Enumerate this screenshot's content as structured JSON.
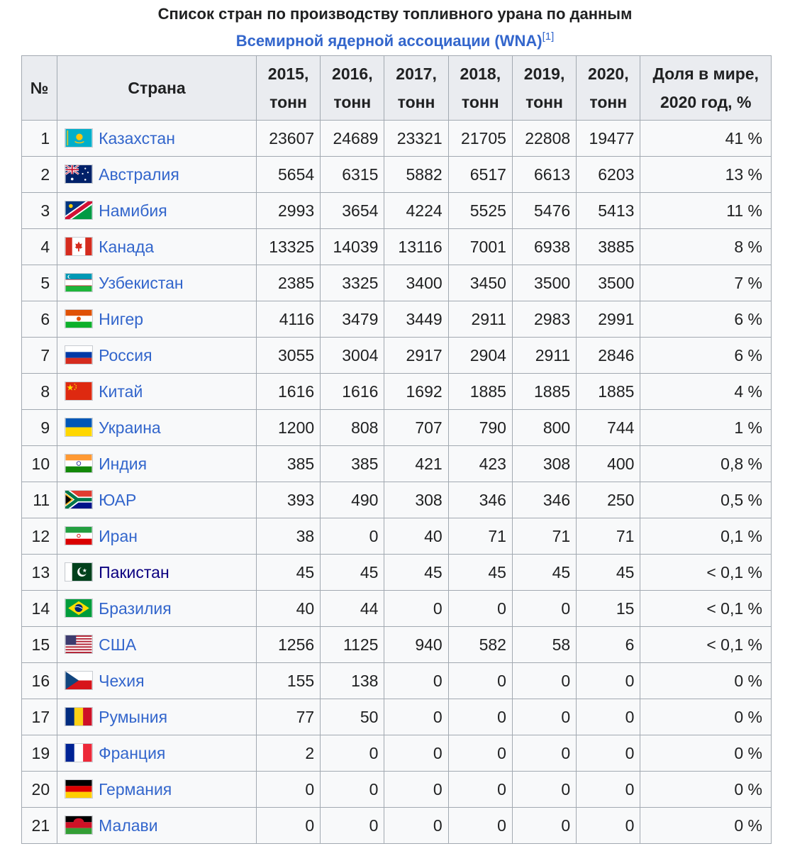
{
  "caption": {
    "line1": "Список стран по производству топливного урана по данным",
    "link_text": "Всемирной ядерной ассоциации (WNA)",
    "ref": "[1]"
  },
  "table": {
    "headers": {
      "num": "№",
      "country": "Страна",
      "years": [
        {
          "year": "2015,",
          "unit": "тонн"
        },
        {
          "year": "2016,",
          "unit": "тонн"
        },
        {
          "year": "2017,",
          "unit": "тонн"
        },
        {
          "year": "2018,",
          "unit": "тонн"
        },
        {
          "year": "2019,",
          "unit": "тонн"
        },
        {
          "year": "2020,",
          "unit": "тонн"
        }
      ],
      "share_line1": "Доля в мире,",
      "share_line2": "2020 год, %"
    },
    "rows": [
      {
        "n": "1",
        "country": "Казахстан",
        "flag": "kazakhstan-flag-icon",
        "values": [
          "23607",
          "24689",
          "23321",
          "21705",
          "22808",
          "19477"
        ],
        "share": "41 %"
      },
      {
        "n": "2",
        "country": "Австралия",
        "flag": "australia-flag-icon",
        "values": [
          "5654",
          "6315",
          "5882",
          "6517",
          "6613",
          "6203"
        ],
        "share": "13 %"
      },
      {
        "n": "3",
        "country": "Намибия",
        "flag": "namibia-flag-icon",
        "values": [
          "2993",
          "3654",
          "4224",
          "5525",
          "5476",
          "5413"
        ],
        "share": "11 %"
      },
      {
        "n": "4",
        "country": "Канада",
        "flag": "canada-flag-icon",
        "values": [
          "13325",
          "14039",
          "13116",
          "7001",
          "6938",
          "3885"
        ],
        "share": "8 %"
      },
      {
        "n": "5",
        "country": "Узбекистан",
        "flag": "uzbekistan-flag-icon",
        "values": [
          "2385",
          "3325",
          "3400",
          "3450",
          "3500",
          "3500"
        ],
        "share": "7 %"
      },
      {
        "n": "6",
        "country": "Нигер",
        "flag": "niger-flag-icon",
        "values": [
          "4116",
          "3479",
          "3449",
          "2911",
          "2983",
          "2991"
        ],
        "share": "6 %"
      },
      {
        "n": "7",
        "country": "Россия",
        "flag": "russia-flag-icon",
        "values": [
          "3055",
          "3004",
          "2917",
          "2904",
          "2911",
          "2846"
        ],
        "share": "6 %"
      },
      {
        "n": "8",
        "country": "Китай",
        "flag": "china-flag-icon",
        "values": [
          "1616",
          "1616",
          "1692",
          "1885",
          "1885",
          "1885"
        ],
        "share": "4 %"
      },
      {
        "n": "9",
        "country": "Украина",
        "flag": "ukraine-flag-icon",
        "values": [
          "1200",
          "808",
          "707",
          "790",
          "800",
          "744"
        ],
        "share": "1 %"
      },
      {
        "n": "10",
        "country": "Индия",
        "flag": "india-flag-icon",
        "values": [
          "385",
          "385",
          "421",
          "423",
          "308",
          "400"
        ],
        "share": "0,8 %"
      },
      {
        "n": "11",
        "country": "ЮАР",
        "flag": "south-africa-flag-icon",
        "values": [
          "393",
          "490",
          "308",
          "346",
          "346",
          "250"
        ],
        "share": "0,5 %"
      },
      {
        "n": "12",
        "country": "Иран",
        "flag": "iran-flag-icon",
        "values": [
          "38",
          "0",
          "40",
          "71",
          "71",
          "71"
        ],
        "share": "0,1 %"
      },
      {
        "n": "13",
        "country": "Пакистан",
        "flag": "pakistan-flag-icon",
        "values": [
          "45",
          "45",
          "45",
          "45",
          "45",
          "45"
        ],
        "share": "< 0,1 %",
        "visited": true
      },
      {
        "n": "14",
        "country": "Бразилия",
        "flag": "brazil-flag-icon",
        "values": [
          "40",
          "44",
          "0",
          "0",
          "0",
          "15"
        ],
        "share": "< 0,1 %"
      },
      {
        "n": "15",
        "country": "США",
        "flag": "usa-flag-icon",
        "values": [
          "1256",
          "1125",
          "940",
          "582",
          "58",
          "6"
        ],
        "share": "< 0,1 %"
      },
      {
        "n": "16",
        "country": "Чехия",
        "flag": "czechia-flag-icon",
        "values": [
          "155",
          "138",
          "0",
          "0",
          "0",
          "0"
        ],
        "share": "0 %"
      },
      {
        "n": "17",
        "country": "Румыния",
        "flag": "romania-flag-icon",
        "values": [
          "77",
          "50",
          "0",
          "0",
          "0",
          "0"
        ],
        "share": "0 %"
      },
      {
        "n": "19",
        "country": "Франция",
        "flag": "france-flag-icon",
        "values": [
          "2",
          "0",
          "0",
          "0",
          "0",
          "0"
        ],
        "share": "0 %"
      },
      {
        "n": "20",
        "country": "Германия",
        "flag": "germany-flag-icon",
        "values": [
          "0",
          "0",
          "0",
          "0",
          "0",
          "0"
        ],
        "share": "0 %"
      },
      {
        "n": "21",
        "country": "Малави",
        "flag": "malawi-flag-icon",
        "values": [
          "0",
          "0",
          "0",
          "0",
          "0",
          "0"
        ],
        "share": "0 %"
      }
    ]
  }
}
